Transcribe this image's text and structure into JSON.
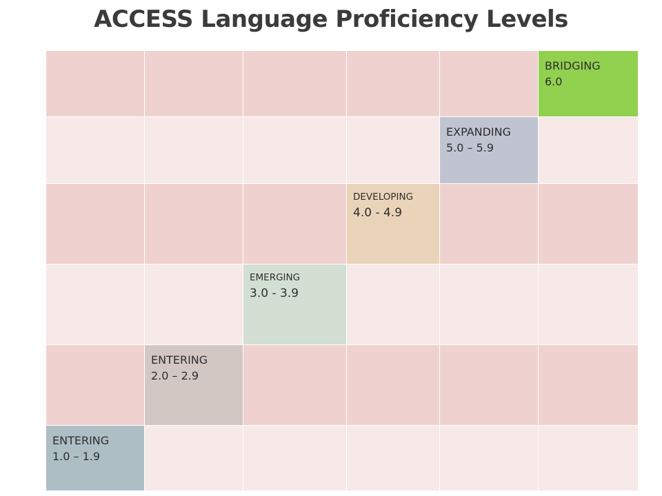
{
  "title": "ACCESS Language Proficiency Levels",
  "colors": {
    "row_dark": "#efd2cf",
    "row_light": "#f6e9e8",
    "bridging": "#92d050",
    "expanding": "#c0c4d0",
    "developing": "#ead4b9",
    "emerging": "#d4dfd4",
    "entering_2": "#d3c7c4",
    "entering_1": "#adbfc5"
  },
  "levels": [
    {
      "label": "BRIDGING",
      "range": "6.0",
      "row": 0,
      "col": 5,
      "color_key": "bridging",
      "style": "normal"
    },
    {
      "label": "EXPANDING",
      "range": "5.0 – 5.9",
      "row": 1,
      "col": 4,
      "color_key": "expanding",
      "style": "normal"
    },
    {
      "label": "DEVELOPING",
      "range": "4.0 - 4.9",
      "row": 2,
      "col": 3,
      "color_key": "developing",
      "style": "small"
    },
    {
      "label": "EMERGING",
      "range": "3.0 - 3.9",
      "row": 3,
      "col": 2,
      "color_key": "emerging",
      "style": "small"
    },
    {
      "label": "ENTERING",
      "range": "2.0 – 2.9",
      "row": 4,
      "col": 1,
      "color_key": "entering_2",
      "style": "normal"
    },
    {
      "label": "ENTERING",
      "range": "1.0 – 1.9",
      "row": 5,
      "col": 0,
      "color_key": "entering_1",
      "style": "normal"
    }
  ]
}
